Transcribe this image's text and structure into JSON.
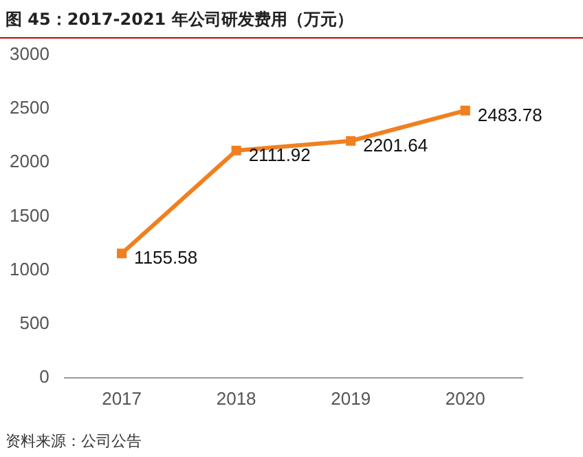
{
  "chart_data": {
    "type": "line",
    "title": "图 45：2017-2021 年公司研发费用（万元）",
    "categories": [
      "2017",
      "2018",
      "2019",
      "2020"
    ],
    "series": [
      {
        "color": "#f0801f",
        "values": [
          1155.58,
          2111.92,
          2201.64,
          2483.78
        ]
      }
    ],
    "ylim": [
      0,
      3000
    ],
    "yticks": [
      0,
      500,
      1000,
      1500,
      2000,
      2500,
      3000
    ],
    "grid": false,
    "legend": false,
    "marker": "square",
    "line_style": "solid",
    "data_labels": true,
    "annotations": [
      "资料来源：公司公告"
    ]
  }
}
